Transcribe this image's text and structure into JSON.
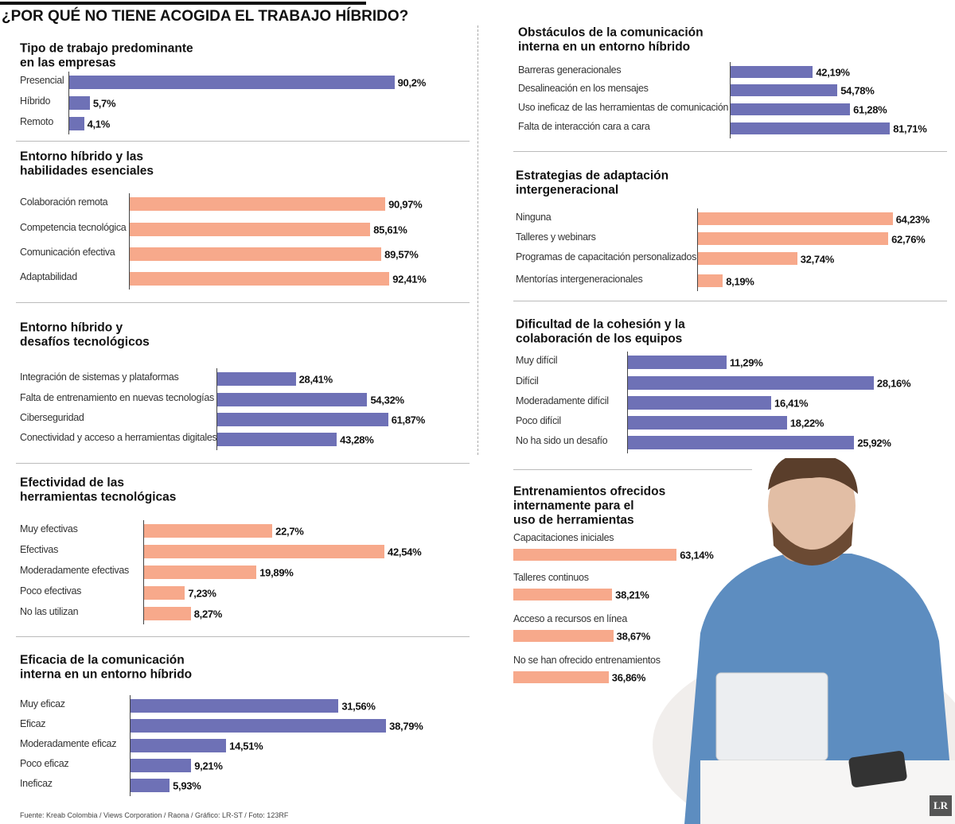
{
  "title": "¿POR QUÉ NO TIENE ACOGIDA EL TRABAJO HÍBRIDO?",
  "source": "Fuente: Kreab Colombia / Views Corporation / Raona / Gráfico: LR-ST / Foto: 123RF",
  "logo": "LR",
  "chart_data": [
    {
      "type": "bar",
      "title": [
        "Tipo de trabajo predominante",
        "en las empresas"
      ],
      "color": "#6e71b6",
      "categories": [
        "Presencial",
        "Híbrido",
        "Remoto"
      ],
      "values": [
        90.2,
        5.7,
        4.1
      ],
      "value_labels": [
        "90,2%",
        "5,7%",
        "4,1%"
      ]
    },
    {
      "type": "bar",
      "title": [
        "Entorno híbrido y las",
        "habilidades esenciales"
      ],
      "color": "#f7a98b",
      "categories": [
        "Colaboración remota",
        "Competencia tecnológica",
        "Comunicación efectiva",
        "Adaptabilidad"
      ],
      "values": [
        90.97,
        85.61,
        89.57,
        92.41
      ],
      "value_labels": [
        "90,97%",
        "85,61%",
        "89,57%",
        "92,41%"
      ]
    },
    {
      "type": "bar",
      "title": [
        "Entorno híbrido y",
        "desafíos tecnológicos"
      ],
      "color": "#6e71b6",
      "categories": [
        "Integración de sistemas y plataformas",
        "Falta de entrenamiento en nuevas tecnologías",
        "Ciberseguridad",
        "Conectividad y acceso a herramientas digitales"
      ],
      "values": [
        28.41,
        54.32,
        61.87,
        43.28
      ],
      "value_labels": [
        "28,41%",
        "54,32%",
        "61,87%",
        "43,28%"
      ]
    },
    {
      "type": "bar",
      "title": [
        "Efectividad de las",
        "herramientas tecnológicas"
      ],
      "color": "#f7a98b",
      "categories": [
        "Muy efectivas",
        "Efectivas",
        "Moderadamente efectivas",
        "Poco efectivas",
        "No las utilizan"
      ],
      "values": [
        22.7,
        42.54,
        19.89,
        7.23,
        8.27
      ],
      "value_labels": [
        "22,7%",
        "42,54%",
        "19,89%",
        "7,23%",
        "8,27%"
      ]
    },
    {
      "type": "bar",
      "title": [
        "Eficacia de la comunicación",
        "interna en un entorno híbrido"
      ],
      "color": "#6e71b6",
      "categories": [
        "Muy eficaz",
        "Eficaz",
        "Moderadamente eficaz",
        "Poco eficaz",
        "Ineficaz"
      ],
      "values": [
        31.56,
        38.79,
        14.51,
        9.21,
        5.93
      ],
      "value_labels": [
        "31,56%",
        "38,79%",
        "14,51%",
        "9,21%",
        "5,93%"
      ]
    },
    {
      "type": "bar",
      "title": [
        "Obstáculos de la comunicación",
        "interna en un entorno híbrido"
      ],
      "color": "#6e71b6",
      "categories": [
        "Barreras generacionales",
        "Desalineación en los mensajes",
        "Uso ineficaz de las herramientas de comunicación",
        "Falta de interacción cara a cara"
      ],
      "values": [
        42.19,
        54.78,
        61.28,
        81.71
      ],
      "value_labels": [
        "42,19%",
        "54,78%",
        "61,28%",
        "81,71%"
      ]
    },
    {
      "type": "bar",
      "title": [
        "Estrategias de adaptación",
        "intergeneracional"
      ],
      "color": "#f7a98b",
      "categories": [
        "Ninguna",
        "Talleres y webinars",
        "Programas de capacitación personalizados",
        "Mentorías intergeneracionales"
      ],
      "values": [
        64.23,
        62.76,
        32.74,
        8.19
      ],
      "value_labels": [
        "64,23%",
        "62,76%",
        "32,74%",
        "8,19%"
      ]
    },
    {
      "type": "bar",
      "title": [
        "Dificultad de la cohesión y la",
        "colaboración de los equipos"
      ],
      "color": "#6e71b6",
      "categories": [
        "Muy difícil",
        "Difícil",
        "Moderadamente difícil",
        "Poco difícil",
        "No ha sido un desafío"
      ],
      "values": [
        11.29,
        28.16,
        16.41,
        18.22,
        25.92
      ],
      "value_labels": [
        "11,29%",
        "28,16%",
        "16,41%",
        "18,22%",
        "25,92%"
      ]
    },
    {
      "type": "bar",
      "title": [
        "Entrenamientos ofrecidos",
        "internamente para el",
        "uso de herramientas"
      ],
      "color": "#f7a98b",
      "categories": [
        "Capacitaciones iniciales",
        "Talleres continuos",
        "Acceso a recursos en línea",
        "No se han ofrecido entrenamientos"
      ],
      "values": [
        63.14,
        38.21,
        38.67,
        36.86
      ],
      "value_labels": [
        "63,14%",
        "38,21%",
        "38,67%",
        "36,86%"
      ]
    }
  ]
}
